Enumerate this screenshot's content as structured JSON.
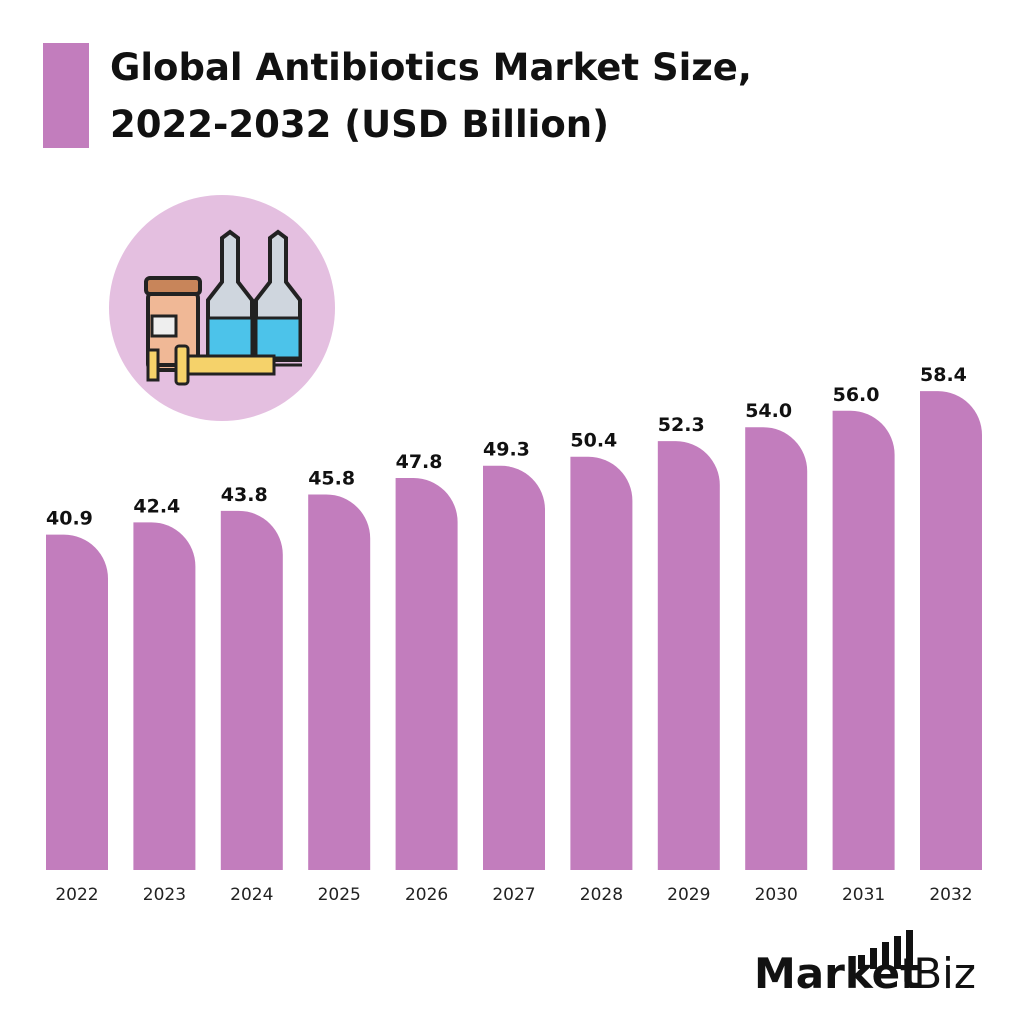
{
  "chart_data": {
    "type": "bar",
    "title": [
      "Global Antibiotics Market Size,",
      "2022-2032 (USD Billion)"
    ],
    "categories": [
      "2022",
      "2023",
      "2024",
      "2025",
      "2026",
      "2027",
      "2028",
      "2029",
      "2030",
      "2031",
      "2032"
    ],
    "values": [
      40.9,
      42.4,
      43.8,
      45.8,
      47.8,
      49.3,
      50.4,
      52.3,
      54.0,
      56.0,
      58.4
    ],
    "value_labels": [
      "40.9",
      "42.4",
      "43.8",
      "45.8",
      "47.8",
      "49.3",
      "50.4",
      "52.3",
      "54.0",
      "56.0",
      "58.4"
    ],
    "color": "#c27dbd"
  },
  "brand": [
    "Market",
    ".Biz"
  ]
}
